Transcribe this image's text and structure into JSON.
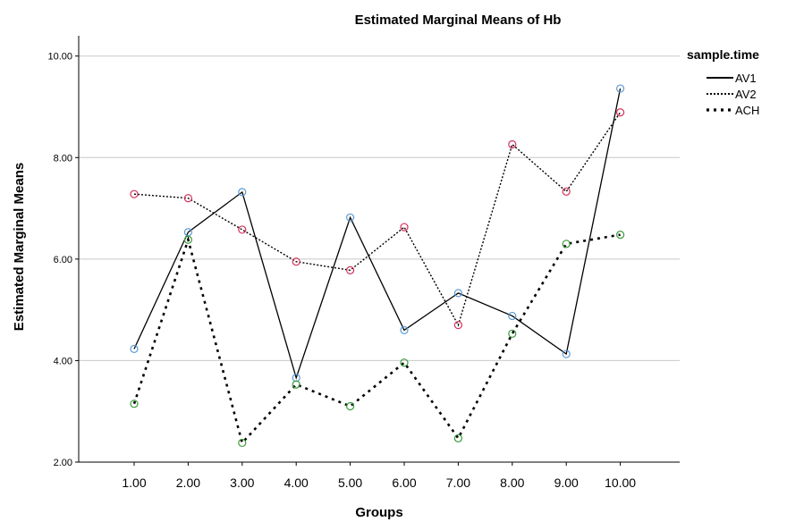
{
  "chart_data": {
    "type": "line",
    "title": "Estimated Marginal Means of Hb",
    "xlabel": "Groups",
    "ylabel": "Estimated Marginal Means",
    "categories": [
      "1.00",
      "2.00",
      "3.00",
      "4.00",
      "5.00",
      "6.00",
      "7.00",
      "8.00",
      "9.00",
      "10.00"
    ],
    "ylim": [
      2.0,
      10.4
    ],
    "yticks": [
      "2.00",
      "4.00",
      "6.00",
      "8.00",
      "10.00"
    ],
    "ytick_values": [
      2,
      4,
      6,
      8,
      10
    ],
    "grid": true,
    "legend_title": "sample.time",
    "legend_position": "top-right, outside plot",
    "series": [
      {
        "name": "AV1",
        "line_style": "solid",
        "marker_color": "#5b9bd5",
        "values": [
          4.23,
          6.53,
          7.32,
          3.66,
          6.82,
          4.6,
          5.33,
          4.88,
          4.13,
          9.36
        ]
      },
      {
        "name": "AV2",
        "line_style": "dotted",
        "marker_color": "#d6305a",
        "values": [
          7.28,
          7.2,
          6.58,
          5.95,
          5.78,
          6.63,
          4.7,
          8.26,
          7.33,
          8.89
        ]
      },
      {
        "name": "ACH",
        "line_style": "dashed",
        "marker_color": "#3a9a3a",
        "values": [
          3.15,
          6.38,
          2.38,
          3.53,
          3.1,
          3.96,
          2.47,
          4.53,
          6.3,
          6.48
        ]
      }
    ]
  }
}
